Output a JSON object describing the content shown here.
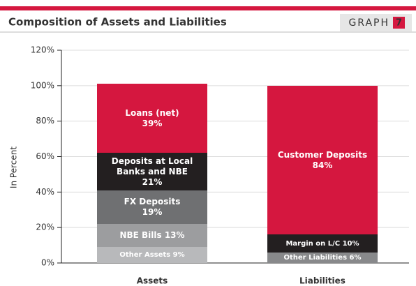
{
  "chart_data": {
    "type": "stacked-bar",
    "title": "Composition of Assets and Liabilities",
    "ylabel": "In Percent",
    "categories": [
      "Assets",
      "Liabilities"
    ],
    "series": [
      {
        "name": "Other Assets",
        "color": "#b8b9bb",
        "values": [
          9,
          null
        ],
        "value_labels": [
          "9%",
          null
        ]
      },
      {
        "name": "NBE Bills",
        "color": "#9c9d9f",
        "values": [
          13,
          null
        ],
        "value_labels": [
          "13%",
          null
        ]
      },
      {
        "name": "FX Deposits",
        "color": "#6f7072",
        "values": [
          19,
          null
        ],
        "value_labels": [
          "19%",
          null
        ]
      },
      {
        "name": "Deposits at Local Banks and NBE",
        "color": "#231f20",
        "values": [
          21,
          null
        ],
        "value_labels": [
          "21%",
          null
        ]
      },
      {
        "name": "Loans (net)",
        "color": "#d5173f",
        "values": [
          39,
          null
        ],
        "value_labels": [
          "39%",
          null
        ]
      },
      {
        "name": "Other Liabilities",
        "color": "#88898b",
        "values": [
          null,
          6
        ],
        "value_labels": [
          null,
          "6%"
        ]
      },
      {
        "name": "Margin on L/C",
        "color": "#231f20",
        "values": [
          null,
          10
        ],
        "value_labels": [
          null,
          "10%"
        ]
      },
      {
        "name": "Customer Deposits",
        "color": "#d5173f",
        "values": [
          null,
          84
        ],
        "value_labels": [
          null,
          "84%"
        ]
      }
    ],
    "ylim": [
      0,
      120
    ],
    "yticks": [
      {
        "value": 0,
        "label": "0%"
      },
      {
        "value": 20,
        "label": "20%"
      },
      {
        "value": 40,
        "label": "40%"
      },
      {
        "value": 60,
        "label": "60%"
      },
      {
        "value": 80,
        "label": "80%"
      },
      {
        "value": 100,
        "label": "100%"
      },
      {
        "value": 120,
        "label": "120%"
      }
    ],
    "grid": true
  },
  "badge": {
    "text": "GRAPH",
    "number": "7"
  }
}
